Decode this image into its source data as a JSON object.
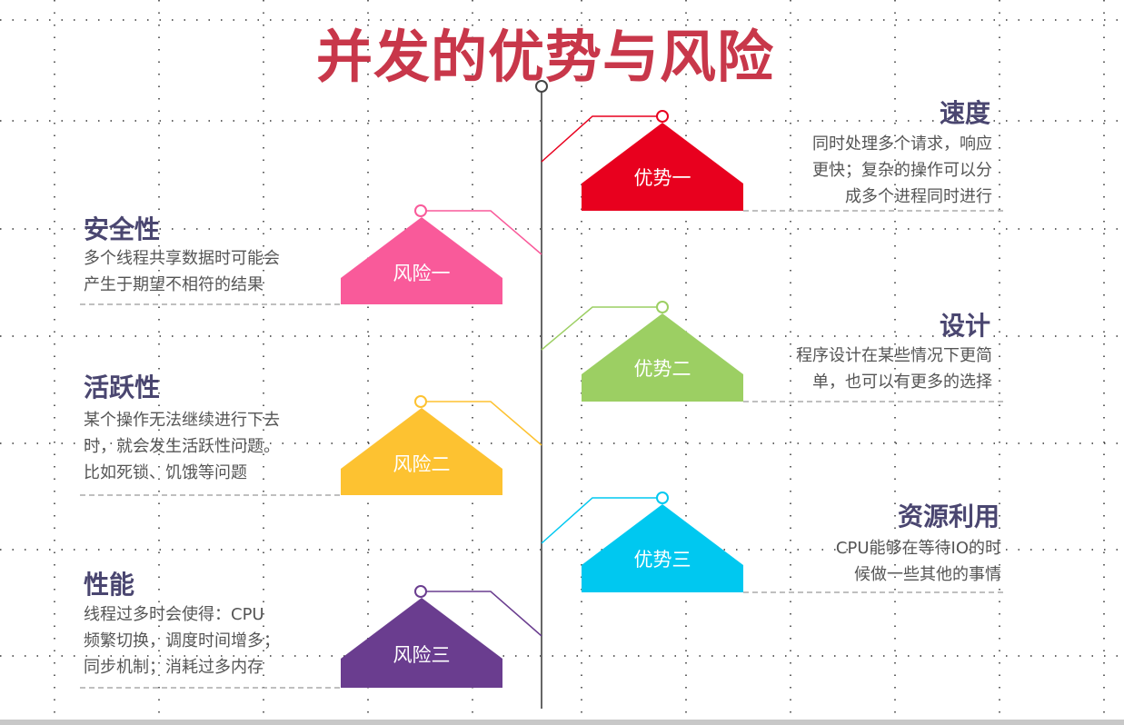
{
  "title": "并发的优势与风险",
  "colors": {
    "title": "#c8374a",
    "advantage_1": "#e8001e",
    "advantage_2": "#9ccf63",
    "advantage_3": "#00c8f0",
    "risk_1": "#f95a9a",
    "risk_2": "#fdc231",
    "risk_3": "#6a3d8f"
  },
  "advantages": [
    {
      "label": "优势一",
      "heading": "速度",
      "lines": [
        "同时处理多个请求，响应",
        "更快；复杂的操作可以分",
        "成多个进程同时进行"
      ]
    },
    {
      "label": "优势二",
      "heading": "设计",
      "lines": [
        "程序设计在某些情况下更简",
        "单，也可以有更多的选择"
      ]
    },
    {
      "label": "优势三",
      "heading": "资源利用",
      "lines": [
        "CPU能够在等待IO的时",
        "候做一些其他的事情"
      ]
    }
  ],
  "risks": [
    {
      "label": "风险一",
      "heading": "安全性",
      "lines": [
        "多个线程共享数据时可能会",
        "产生于期望不相符的结果"
      ]
    },
    {
      "label": "风险二",
      "heading": "活跃性",
      "lines": [
        "某个操作无法继续进行下去",
        "时，就会发生活跃性问题。",
        "比如死锁、饥饿等问题"
      ]
    },
    {
      "label": "风险三",
      "heading": "性能",
      "lines": [
        "线程过多时会使得：CPU",
        "频繁切换，调度时间增多；",
        "同步机制；消耗过多内存"
      ]
    }
  ]
}
